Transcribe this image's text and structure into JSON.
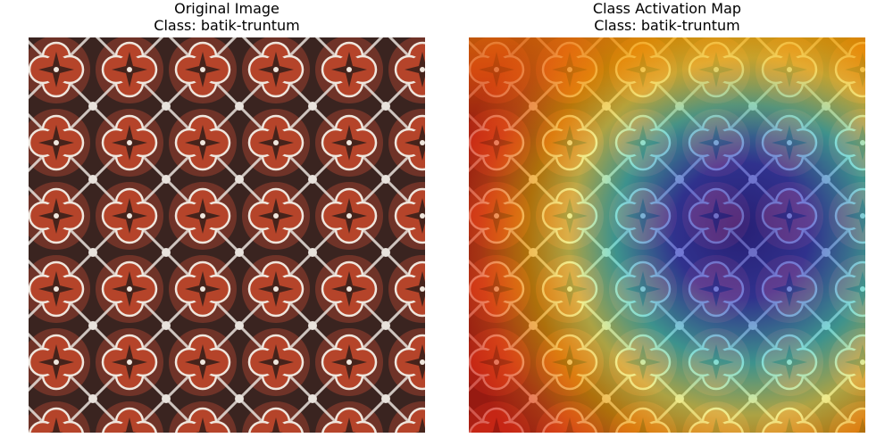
{
  "panels": [
    {
      "title_line1": "Original Image",
      "title_line2": "Class: batik-truntum"
    },
    {
      "title_line1": "Class Activation Map",
      "title_line2": "Class: batik-truntum"
    }
  ],
  "colors": {
    "batik_red": "#b5442a",
    "batik_dark": "#2a1a18",
    "batik_white": "#e8e2dc",
    "cam_hot": "#e31a0e",
    "cam_warm": "#f5a000",
    "cam_mid": "#f2f05a",
    "cam_cool": "#3fd6d0",
    "cam_cold": "#1c1ca8"
  }
}
